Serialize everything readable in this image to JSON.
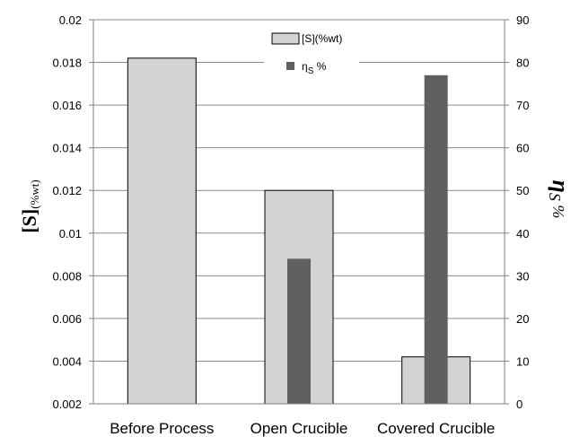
{
  "chart_data": {
    "type": "bar",
    "categories": [
      "Before Process",
      "Open Crucible",
      "Covered Crucible"
    ],
    "series": [
      {
        "name": "[S](%wt)",
        "axis": "left",
        "values": [
          0.0182,
          0.012,
          0.0042
        ],
        "color": "#d3d3d3"
      },
      {
        "name": "ηS %",
        "name_main": "η",
        "name_sub": "S",
        "name_suffix": " %",
        "axis": "right",
        "values": [
          null,
          34,
          77
        ],
        "color": "#606060"
      }
    ],
    "y_left": {
      "label_main": "[S]",
      "label_sub": "(%wt)",
      "lim": [
        0.002,
        0.02
      ],
      "ticks": [
        "0.002",
        "0.004",
        "0.006",
        "0.008",
        "0.01",
        "0.012",
        "0.014",
        "0.016",
        "0.018",
        "0.02"
      ]
    },
    "y_right": {
      "label_main": "η",
      "label_sub": "S",
      "label_suffix": " %",
      "lim": [
        0,
        90
      ],
      "ticks": [
        "0",
        "10",
        "20",
        "30",
        "40",
        "50",
        "60",
        "70",
        "80",
        "90"
      ]
    },
    "grid": true,
    "legend_position": "top-center",
    "colors": {
      "light_bar": "#d3d3d3",
      "dark_bar": "#606060",
      "grid": "#8c8c8c",
      "axis": "#7f7f7f"
    }
  }
}
